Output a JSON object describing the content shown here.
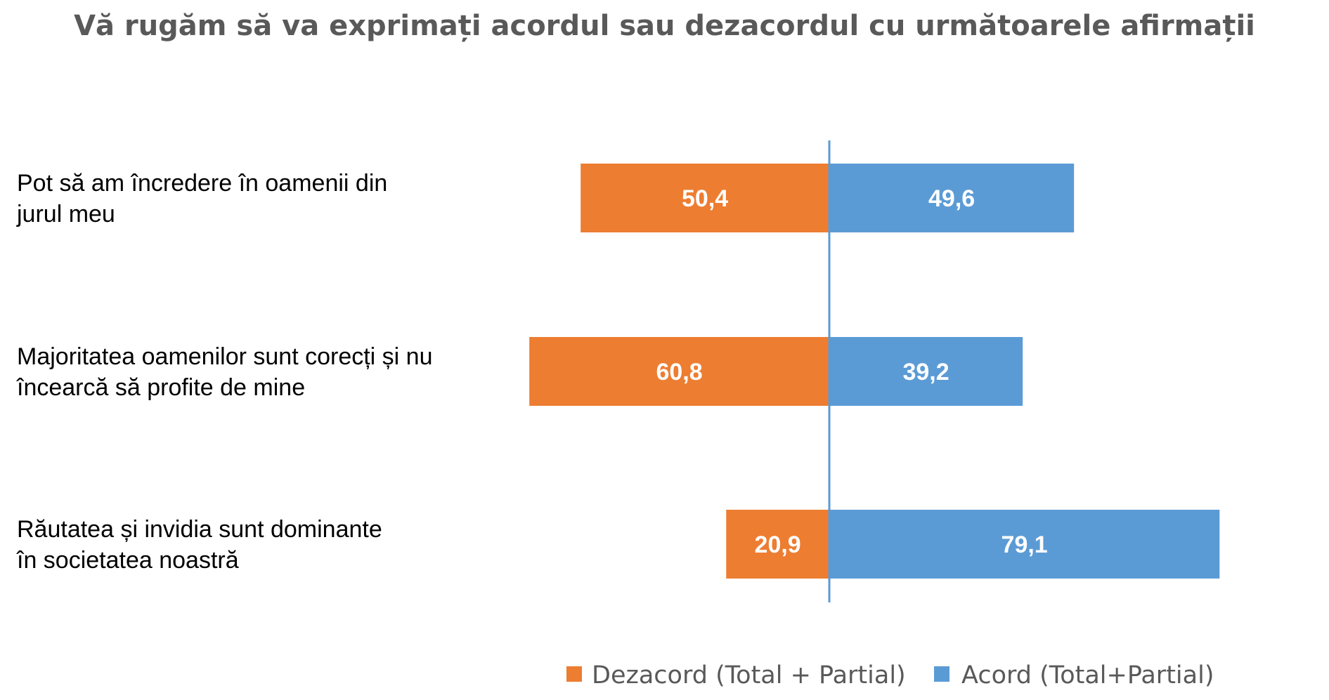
{
  "chart_data": {
    "type": "bar",
    "orientation": "horizontal",
    "stacked": "diverging",
    "title": "Vă rugăm să va exprimați acordul sau dezacordul cu următoarele afirmații",
    "categories": [
      [
        "Pot să am încredere în oamenii din",
        "jurul meu"
      ],
      [
        "Majoritatea oamenilor sunt corecți și nu",
        "încearcă să profite de mine"
      ],
      [
        "Răutatea și invidia sunt dominante",
        "în societatea noastră"
      ]
    ],
    "series": [
      {
        "name": "Dezacord (Total + Partial)",
        "color": "#ED7D31",
        "direction": "left",
        "values": [
          50.4,
          60.8,
          20.9
        ],
        "labels": [
          "50,4",
          "60,8",
          "20,9"
        ]
      },
      {
        "name": "Acord (Total+Partial)",
        "color": "#5B9BD5",
        "direction": "right",
        "values": [
          49.6,
          39.2,
          79.1
        ],
        "labels": [
          "49,6",
          "39,2",
          "79,1"
        ]
      }
    ],
    "grid": false,
    "legend": "bottom-right"
  }
}
